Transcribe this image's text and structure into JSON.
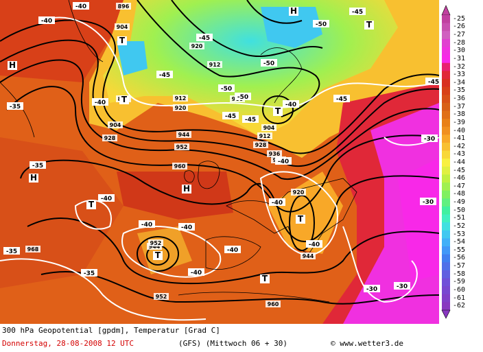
{
  "map": {
    "caption": "300 hPa Geopotential [gpdm], Temperatur [Grad C]",
    "date_line": "Donnerstag, 28-08-2008  12 UTC",
    "model_line": "(GFS)  (Mittwoch 06 + 30)",
    "copyright": "© www.wetter3.de",
    "contour_labels": [
      "896",
      "904",
      "912",
      "920",
      "928",
      "936",
      "944",
      "952",
      "960",
      "968",
      "896",
      "904",
      "912",
      "920",
      "928",
      "936",
      "944",
      "952",
      "960",
      "904",
      "912",
      "920",
      "944",
      "952",
      "960"
    ],
    "temperature_labels": [
      "-40",
      "-40",
      "-45",
      "-45",
      "-50",
      "-50",
      "-50",
      "-50",
      "-40",
      "-45",
      "-45",
      "-45",
      "-35",
      "-35",
      "-35",
      "-40",
      "-40",
      "-40",
      "-40",
      "-40",
      "-40",
      "-40",
      "-40",
      "-35",
      "-30",
      "-30",
      "-30",
      "-30",
      "-40",
      "-45",
      "-45"
    ],
    "pressure_centers": [
      {
        "symbol": "H",
        "kind": "high"
      },
      {
        "symbol": "H",
        "kind": "high"
      },
      {
        "symbol": "H",
        "kind": "high"
      },
      {
        "symbol": "H",
        "kind": "high"
      },
      {
        "symbol": "T",
        "kind": "low"
      },
      {
        "symbol": "T",
        "kind": "low"
      },
      {
        "symbol": "T",
        "kind": "low"
      },
      {
        "symbol": "T",
        "kind": "low"
      },
      {
        "symbol": "T",
        "kind": "low"
      },
      {
        "symbol": "T",
        "kind": "low"
      },
      {
        "symbol": "T",
        "kind": "low"
      },
      {
        "symbol": "T",
        "kind": "low"
      }
    ]
  },
  "legend": {
    "labels": [
      "-25",
      "-26",
      "-27",
      "-28",
      "-30",
      "-31",
      "-32",
      "-33",
      "-34",
      "-35",
      "-36",
      "-37",
      "-38",
      "-39",
      "-40",
      "-41",
      "-42",
      "-43",
      "-44",
      "-45",
      "-46",
      "-47",
      "-48",
      "-49",
      "-50",
      "-51",
      "-52",
      "-53",
      "-54",
      "-55",
      "-56",
      "-57",
      "-58",
      "-59",
      "-60",
      "-61",
      "-62"
    ],
    "colors": [
      "#c040a0",
      "#c850b0",
      "#d060c0",
      "#e040d0",
      "#f030e0",
      "#f828e8",
      "#e82070",
      "#e02838",
      "#d83020",
      "#d84018",
      "#d85018",
      "#d86018",
      "#e07018",
      "#e88018",
      "#f09020",
      "#f8a828",
      "#f8c030",
      "#f8d838",
      "#f8f040",
      "#e0f040",
      "#c0f040",
      "#a0f050",
      "#80f060",
      "#60f080",
      "#40f0a0",
      "#40f0c0",
      "#40e0e0",
      "#40c8f0",
      "#40b0f8",
      "#4098f8",
      "#4080f0",
      "#5070e8",
      "#6060e0",
      "#7050d8",
      "#7848d0",
      "#8040c8",
      "#8838c0"
    ]
  }
}
